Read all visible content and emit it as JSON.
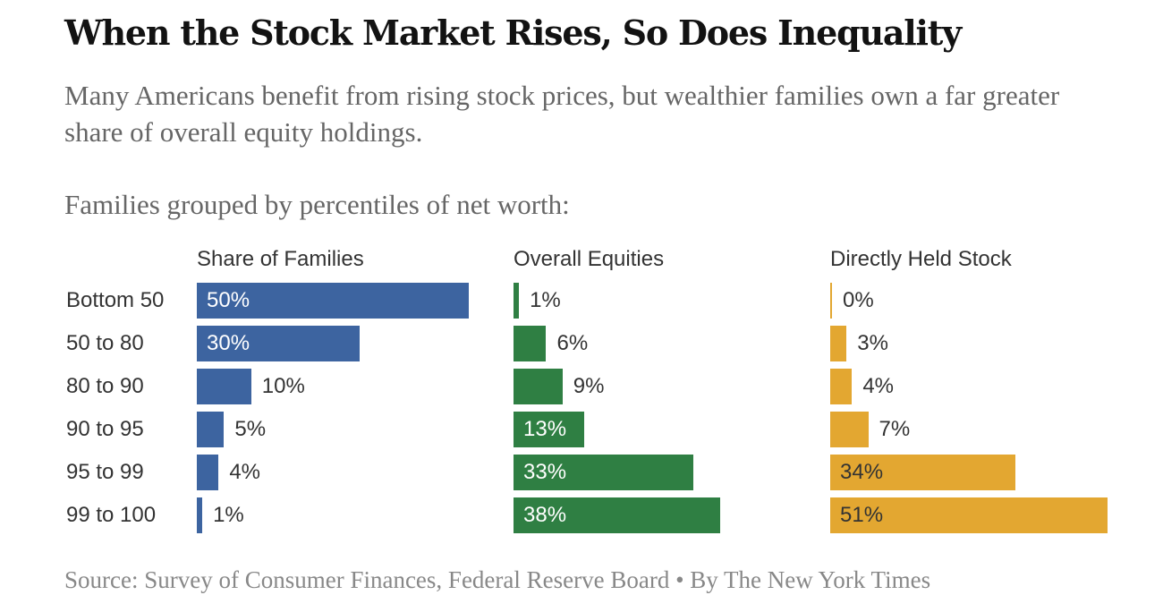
{
  "header": {
    "title": "When the Stock Market Rises, So Does Inequality",
    "subtitle": "Many Americans benefit from rising stock prices, but wealthier families own a far greater share of overall equity holdings.",
    "group_label": "Families grouped by percentiles of net worth:"
  },
  "footer": {
    "source": "Source: Survey of Consumer Finances, Federal Reserve Board • By The New York Times"
  },
  "chart_data": {
    "type": "bar",
    "orientation": "horizontal",
    "title": "When the Stock Market Rises, So Does Inequality",
    "categories": [
      "Bottom 50",
      "50 to 80",
      "80 to 90",
      "90 to 95",
      "95 to 99",
      "99 to 100"
    ],
    "unit": "%",
    "series": [
      {
        "name": "Share of Families",
        "values": [
          50,
          30,
          10,
          5,
          4,
          1
        ],
        "color": "#3d64a0",
        "inside_label_color": "#ffffff"
      },
      {
        "name": "Overall Equities",
        "values": [
          1,
          6,
          9,
          13,
          33,
          38
        ],
        "color": "#2f7f43",
        "inside_label_color": "#ffffff"
      },
      {
        "name": "Directly Held Stock",
        "values": [
          0,
          3,
          4,
          7,
          34,
          51
        ],
        "color": "#e3a731",
        "inside_label_color": "#333333"
      }
    ],
    "xlim": [
      0,
      50
    ],
    "grid": false,
    "legend": "none",
    "labels": {
      "Share of Families": [
        "50%",
        "30%",
        "10%",
        "5%",
        "4%",
        "1%"
      ],
      "Overall Equities": [
        "1%",
        "6%",
        "9%",
        "13%",
        "33%",
        "38%"
      ],
      "Directly Held Stock": [
        "0%",
        "3%",
        "4%",
        "7%",
        "34%",
        "51%"
      ]
    }
  }
}
